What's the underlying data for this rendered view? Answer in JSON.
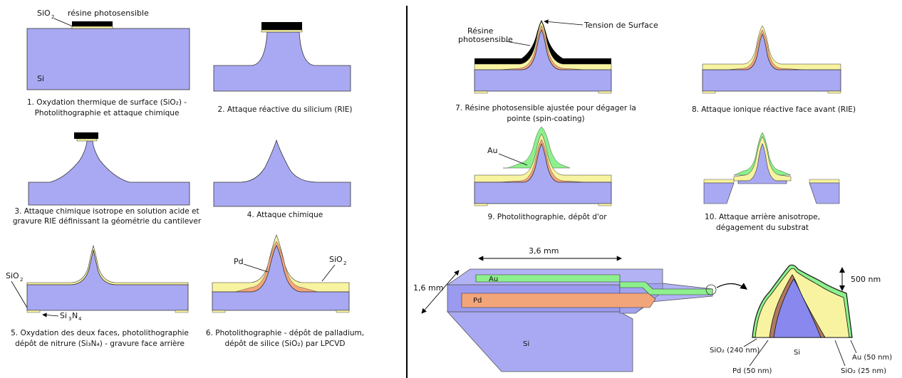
{
  "labels": {
    "sio2": "SiO",
    "sio2_sub": "2",
    "resine": "résine photosensible",
    "si": "Si",
    "tension": "Tension de Surface",
    "resine_line1": "Résine",
    "resine_line2": "photosensible",
    "pd": "Pd",
    "au": "Au",
    "si3n4_main": "Si",
    "si3n4_sub1": "3",
    "si3n4_mid": "N",
    "si3n4_sub2": "4",
    "dim_36": "3,6 mm",
    "dim_16": "1,6 mm",
    "dim_500": "500 nm",
    "sio2_240": "SiO₂ (240 nm)",
    "pd_50": "Pd (50 nm)",
    "au_50": "Au (50 nm)",
    "sio2_25": "SiO₂ (25 nm)"
  },
  "captions": {
    "c1a": "1. Oxydation thermique de surface (SiO₂) -",
    "c1b": "Photolithographie et attaque chimique",
    "c2": "2. Attaque réactive du silicium (RIE)",
    "c3a": "3. Attaque chimique isotrope en solution acide et",
    "c3b": "gravure RIE définissant la géométrie du cantilever",
    "c4": "4. Attaque chimique",
    "c5a": "5. Oxydation des deux faces, photolithographie",
    "c5b": "dépôt de nitrure (Si₃N₄) - gravure face arrière",
    "c6a": "6. Photolithographie - dépôt de palladium,",
    "c6b": "dépôt de silice (SiO₂) par LPCVD",
    "c7a": "7. Résine photosensible ajustée pour dégager la",
    "c7b": "pointe (spin-coating)",
    "c8": "8. Attaque ionique réactive face avant (RIE)",
    "c9": "9. Photolithographie, dépôt d'or",
    "c10a": "10. Attaque arrière anisotrope,",
    "c10b": "dégagement du substrat"
  },
  "colors": {
    "si": "#a9a9f3",
    "si_dark": "#8f8fe6",
    "sio2": "#f7f3a0",
    "pd": "#f3a57a",
    "au": "#8cf08c",
    "resist": "#000000"
  }
}
